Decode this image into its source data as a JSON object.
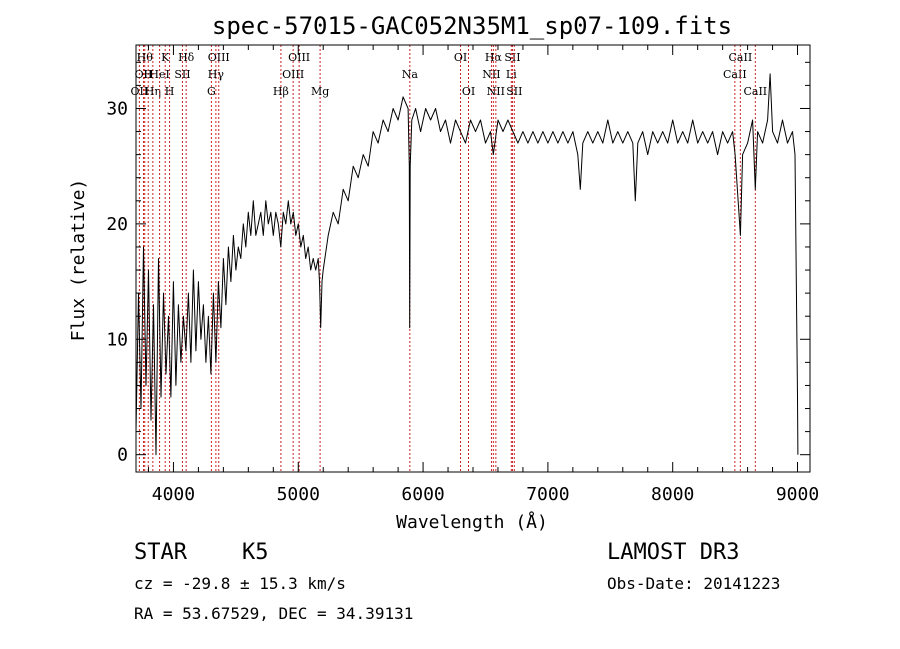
{
  "chart_data": {
    "type": "line",
    "title": "spec-57015-GAC052N35M1_sp07-109.fits",
    "xlabel": "Wavelength (Å)",
    "ylabel": "Flux (relative)",
    "xlim": [
      3700,
      9100
    ],
    "ylim": [
      -1.5,
      35.5
    ],
    "xticks": [
      4000,
      5000,
      6000,
      7000,
      8000,
      9000
    ],
    "xtick_labels": [
      "4000",
      "5000",
      "6000",
      "7000",
      "8000",
      "9000"
    ],
    "yticks": [
      0,
      10,
      20,
      30
    ],
    "ytick_labels": [
      "0",
      "10",
      "20",
      "30"
    ],
    "grid": false,
    "series": [
      {
        "name": "flux",
        "points": [
          [
            3700,
            2
          ],
          [
            3720,
            14
          ],
          [
            3740,
            4
          ],
          [
            3760,
            18
          ],
          [
            3780,
            6
          ],
          [
            3800,
            16
          ],
          [
            3820,
            3
          ],
          [
            3840,
            13
          ],
          [
            3860,
            0
          ],
          [
            3880,
            17
          ],
          [
            3900,
            5
          ],
          [
            3920,
            14
          ],
          [
            3940,
            7
          ],
          [
            3960,
            12
          ],
          [
            3980,
            5
          ],
          [
            4000,
            15
          ],
          [
            4020,
            6
          ],
          [
            4040,
            13
          ],
          [
            4060,
            8
          ],
          [
            4080,
            12
          ],
          [
            4100,
            9
          ],
          [
            4120,
            14
          ],
          [
            4140,
            8
          ],
          [
            4160,
            16
          ],
          [
            4180,
            9
          ],
          [
            4200,
            15
          ],
          [
            4220,
            10
          ],
          [
            4240,
            13
          ],
          [
            4260,
            8
          ],
          [
            4280,
            12
          ],
          [
            4300,
            7
          ],
          [
            4320,
            14
          ],
          [
            4340,
            8
          ],
          [
            4360,
            15
          ],
          [
            4380,
            11
          ],
          [
            4400,
            17
          ],
          [
            4420,
            13
          ],
          [
            4440,
            18
          ],
          [
            4460,
            15
          ],
          [
            4480,
            19
          ],
          [
            4500,
            16
          ],
          [
            4520,
            18
          ],
          [
            4540,
            17
          ],
          [
            4560,
            20
          ],
          [
            4580,
            18
          ],
          [
            4600,
            21
          ],
          [
            4620,
            19
          ],
          [
            4640,
            22
          ],
          [
            4660,
            19
          ],
          [
            4680,
            20
          ],
          [
            4700,
            21
          ],
          [
            4720,
            19
          ],
          [
            4740,
            22
          ],
          [
            4760,
            20
          ],
          [
            4780,
            21
          ],
          [
            4800,
            19
          ],
          [
            4820,
            21
          ],
          [
            4840,
            20
          ],
          [
            4860,
            18
          ],
          [
            4880,
            21
          ],
          [
            4900,
            20
          ],
          [
            4920,
            22
          ],
          [
            4940,
            20
          ],
          [
            4960,
            21
          ],
          [
            4980,
            19
          ],
          [
            5000,
            20
          ],
          [
            5020,
            18
          ],
          [
            5040,
            19
          ],
          [
            5060,
            17
          ],
          [
            5080,
            18
          ],
          [
            5100,
            16
          ],
          [
            5120,
            17
          ],
          [
            5140,
            16
          ],
          [
            5160,
            17
          ],
          [
            5170,
            15
          ],
          [
            5180,
            11
          ],
          [
            5190,
            15
          ],
          [
            5200,
            16
          ],
          [
            5240,
            19
          ],
          [
            5280,
            21
          ],
          [
            5320,
            20
          ],
          [
            5360,
            23
          ],
          [
            5400,
            22
          ],
          [
            5440,
            25
          ],
          [
            5480,
            24
          ],
          [
            5520,
            26
          ],
          [
            5560,
            25
          ],
          [
            5600,
            28
          ],
          [
            5640,
            27
          ],
          [
            5680,
            29
          ],
          [
            5720,
            28
          ],
          [
            5760,
            30
          ],
          [
            5800,
            29
          ],
          [
            5840,
            31
          ],
          [
            5880,
            30
          ],
          [
            5890,
            25
          ],
          [
            5893,
            11
          ],
          [
            5897,
            25
          ],
          [
            5910,
            29
          ],
          [
            5940,
            30
          ],
          [
            5980,
            28
          ],
          [
            6020,
            30
          ],
          [
            6060,
            29
          ],
          [
            6100,
            30
          ],
          [
            6140,
            28
          ],
          [
            6180,
            29
          ],
          [
            6220,
            27
          ],
          [
            6260,
            29
          ],
          [
            6300,
            28
          ],
          [
            6340,
            27
          ],
          [
            6380,
            29
          ],
          [
            6420,
            28
          ],
          [
            6460,
            29
          ],
          [
            6500,
            27
          ],
          [
            6540,
            28
          ],
          [
            6563,
            26
          ],
          [
            6600,
            29
          ],
          [
            6640,
            28
          ],
          [
            6680,
            29
          ],
          [
            6720,
            28
          ],
          [
            6760,
            27
          ],
          [
            6800,
            28
          ],
          [
            6840,
            27
          ],
          [
            6880,
            28
          ],
          [
            6920,
            27
          ],
          [
            6960,
            28
          ],
          [
            7000,
            27
          ],
          [
            7040,
            28
          ],
          [
            7080,
            27
          ],
          [
            7120,
            28
          ],
          [
            7160,
            27
          ],
          [
            7200,
            28
          ],
          [
            7240,
            26
          ],
          [
            7260,
            23
          ],
          [
            7280,
            27
          ],
          [
            7320,
            28
          ],
          [
            7360,
            27
          ],
          [
            7400,
            28
          ],
          [
            7440,
            27
          ],
          [
            7480,
            29
          ],
          [
            7520,
            27
          ],
          [
            7560,
            28
          ],
          [
            7600,
            27
          ],
          [
            7640,
            28
          ],
          [
            7680,
            27
          ],
          [
            7700,
            22
          ],
          [
            7720,
            27
          ],
          [
            7760,
            28
          ],
          [
            7800,
            26
          ],
          [
            7840,
            28
          ],
          [
            7880,
            27
          ],
          [
            7920,
            28
          ],
          [
            7960,
            27
          ],
          [
            8000,
            29
          ],
          [
            8040,
            27
          ],
          [
            8080,
            28
          ],
          [
            8120,
            27
          ],
          [
            8160,
            29
          ],
          [
            8200,
            27
          ],
          [
            8240,
            28
          ],
          [
            8280,
            27
          ],
          [
            8320,
            28
          ],
          [
            8360,
            26
          ],
          [
            8400,
            28
          ],
          [
            8440,
            27
          ],
          [
            8480,
            28
          ],
          [
            8500,
            26
          ],
          [
            8542,
            19
          ],
          [
            8560,
            26
          ],
          [
            8600,
            27
          ],
          [
            8640,
            29
          ],
          [
            8662,
            23
          ],
          [
            8680,
            28
          ],
          [
            8720,
            27
          ],
          [
            8760,
            29
          ],
          [
            8780,
            33
          ],
          [
            8800,
            28
          ],
          [
            8840,
            27
          ],
          [
            8880,
            29
          ],
          [
            8920,
            27
          ],
          [
            8960,
            28
          ],
          [
            8980,
            26
          ],
          [
            9000,
            5
          ],
          [
            9003,
            0
          ]
        ]
      }
    ],
    "line_markers": [
      {
        "wavelength": 3727,
        "label": "OII",
        "row": 3
      },
      {
        "wavelength": 3760,
        "label": "OII",
        "row": 2
      },
      {
        "wavelength": 3770,
        "label": "Hθ",
        "row": 1
      },
      {
        "wavelength": 3798,
        "label": "H",
        "row": 2
      },
      {
        "wavelength": 3835,
        "label": "Hη",
        "row": 3
      },
      {
        "wavelength": 3889,
        "label": "HeI",
        "row": 2
      },
      {
        "wavelength": 3934,
        "label": "K",
        "row": 1
      },
      {
        "wavelength": 3969,
        "label": "H",
        "row": 3
      },
      {
        "wavelength": 4072,
        "label": "SII",
        "row": 2
      },
      {
        "wavelength": 4102,
        "label": "Hδ",
        "row": 1
      },
      {
        "wavelength": 4304,
        "label": "G",
        "row": 3
      },
      {
        "wavelength": 4340,
        "label": "Hγ",
        "row": 2
      },
      {
        "wavelength": 4363,
        "label": "OIII",
        "row": 1
      },
      {
        "wavelength": 4861,
        "label": "Hβ",
        "row": 3
      },
      {
        "wavelength": 4959,
        "label": "OIII",
        "row": 2
      },
      {
        "wavelength": 5007,
        "label": "OIII",
        "row": 1
      },
      {
        "wavelength": 5175,
        "label": "Mg",
        "row": 3
      },
      {
        "wavelength": 5894,
        "label": "Na",
        "row": 2
      },
      {
        "wavelength": 6300,
        "label": "OI",
        "row": 1
      },
      {
        "wavelength": 6364,
        "label": "OI",
        "row": 3
      },
      {
        "wavelength": 6548,
        "label": "NII",
        "row": 2
      },
      {
        "wavelength": 6563,
        "label": "Hα",
        "row": 1
      },
      {
        "wavelength": 6583,
        "label": "NII",
        "row": 3
      },
      {
        "wavelength": 6707,
        "label": "Li",
        "row": 2
      },
      {
        "wavelength": 6716,
        "label": "SII",
        "row": 1
      },
      {
        "wavelength": 6731,
        "label": "SII",
        "row": 3
      },
      {
        "wavelength": 8498,
        "label": "CaII",
        "row": 2
      },
      {
        "wavelength": 8542,
        "label": "CaII",
        "row": 1
      },
      {
        "wavelength": 8662,
        "label": "CaII",
        "row": 3
      }
    ]
  },
  "info": {
    "class_label": "STAR",
    "subclass": "K5",
    "survey": "LAMOST DR3",
    "cz_line": "cz = -29.8 ± 15.3 km/s",
    "obs_date_line": "Obs-Date: 20141223",
    "coords_line": "RA =  53.67529, DEC =  34.39131"
  },
  "colors": {
    "marker_line": "#cc2222",
    "spectrum": "#000000",
    "axes": "#000000"
  }
}
